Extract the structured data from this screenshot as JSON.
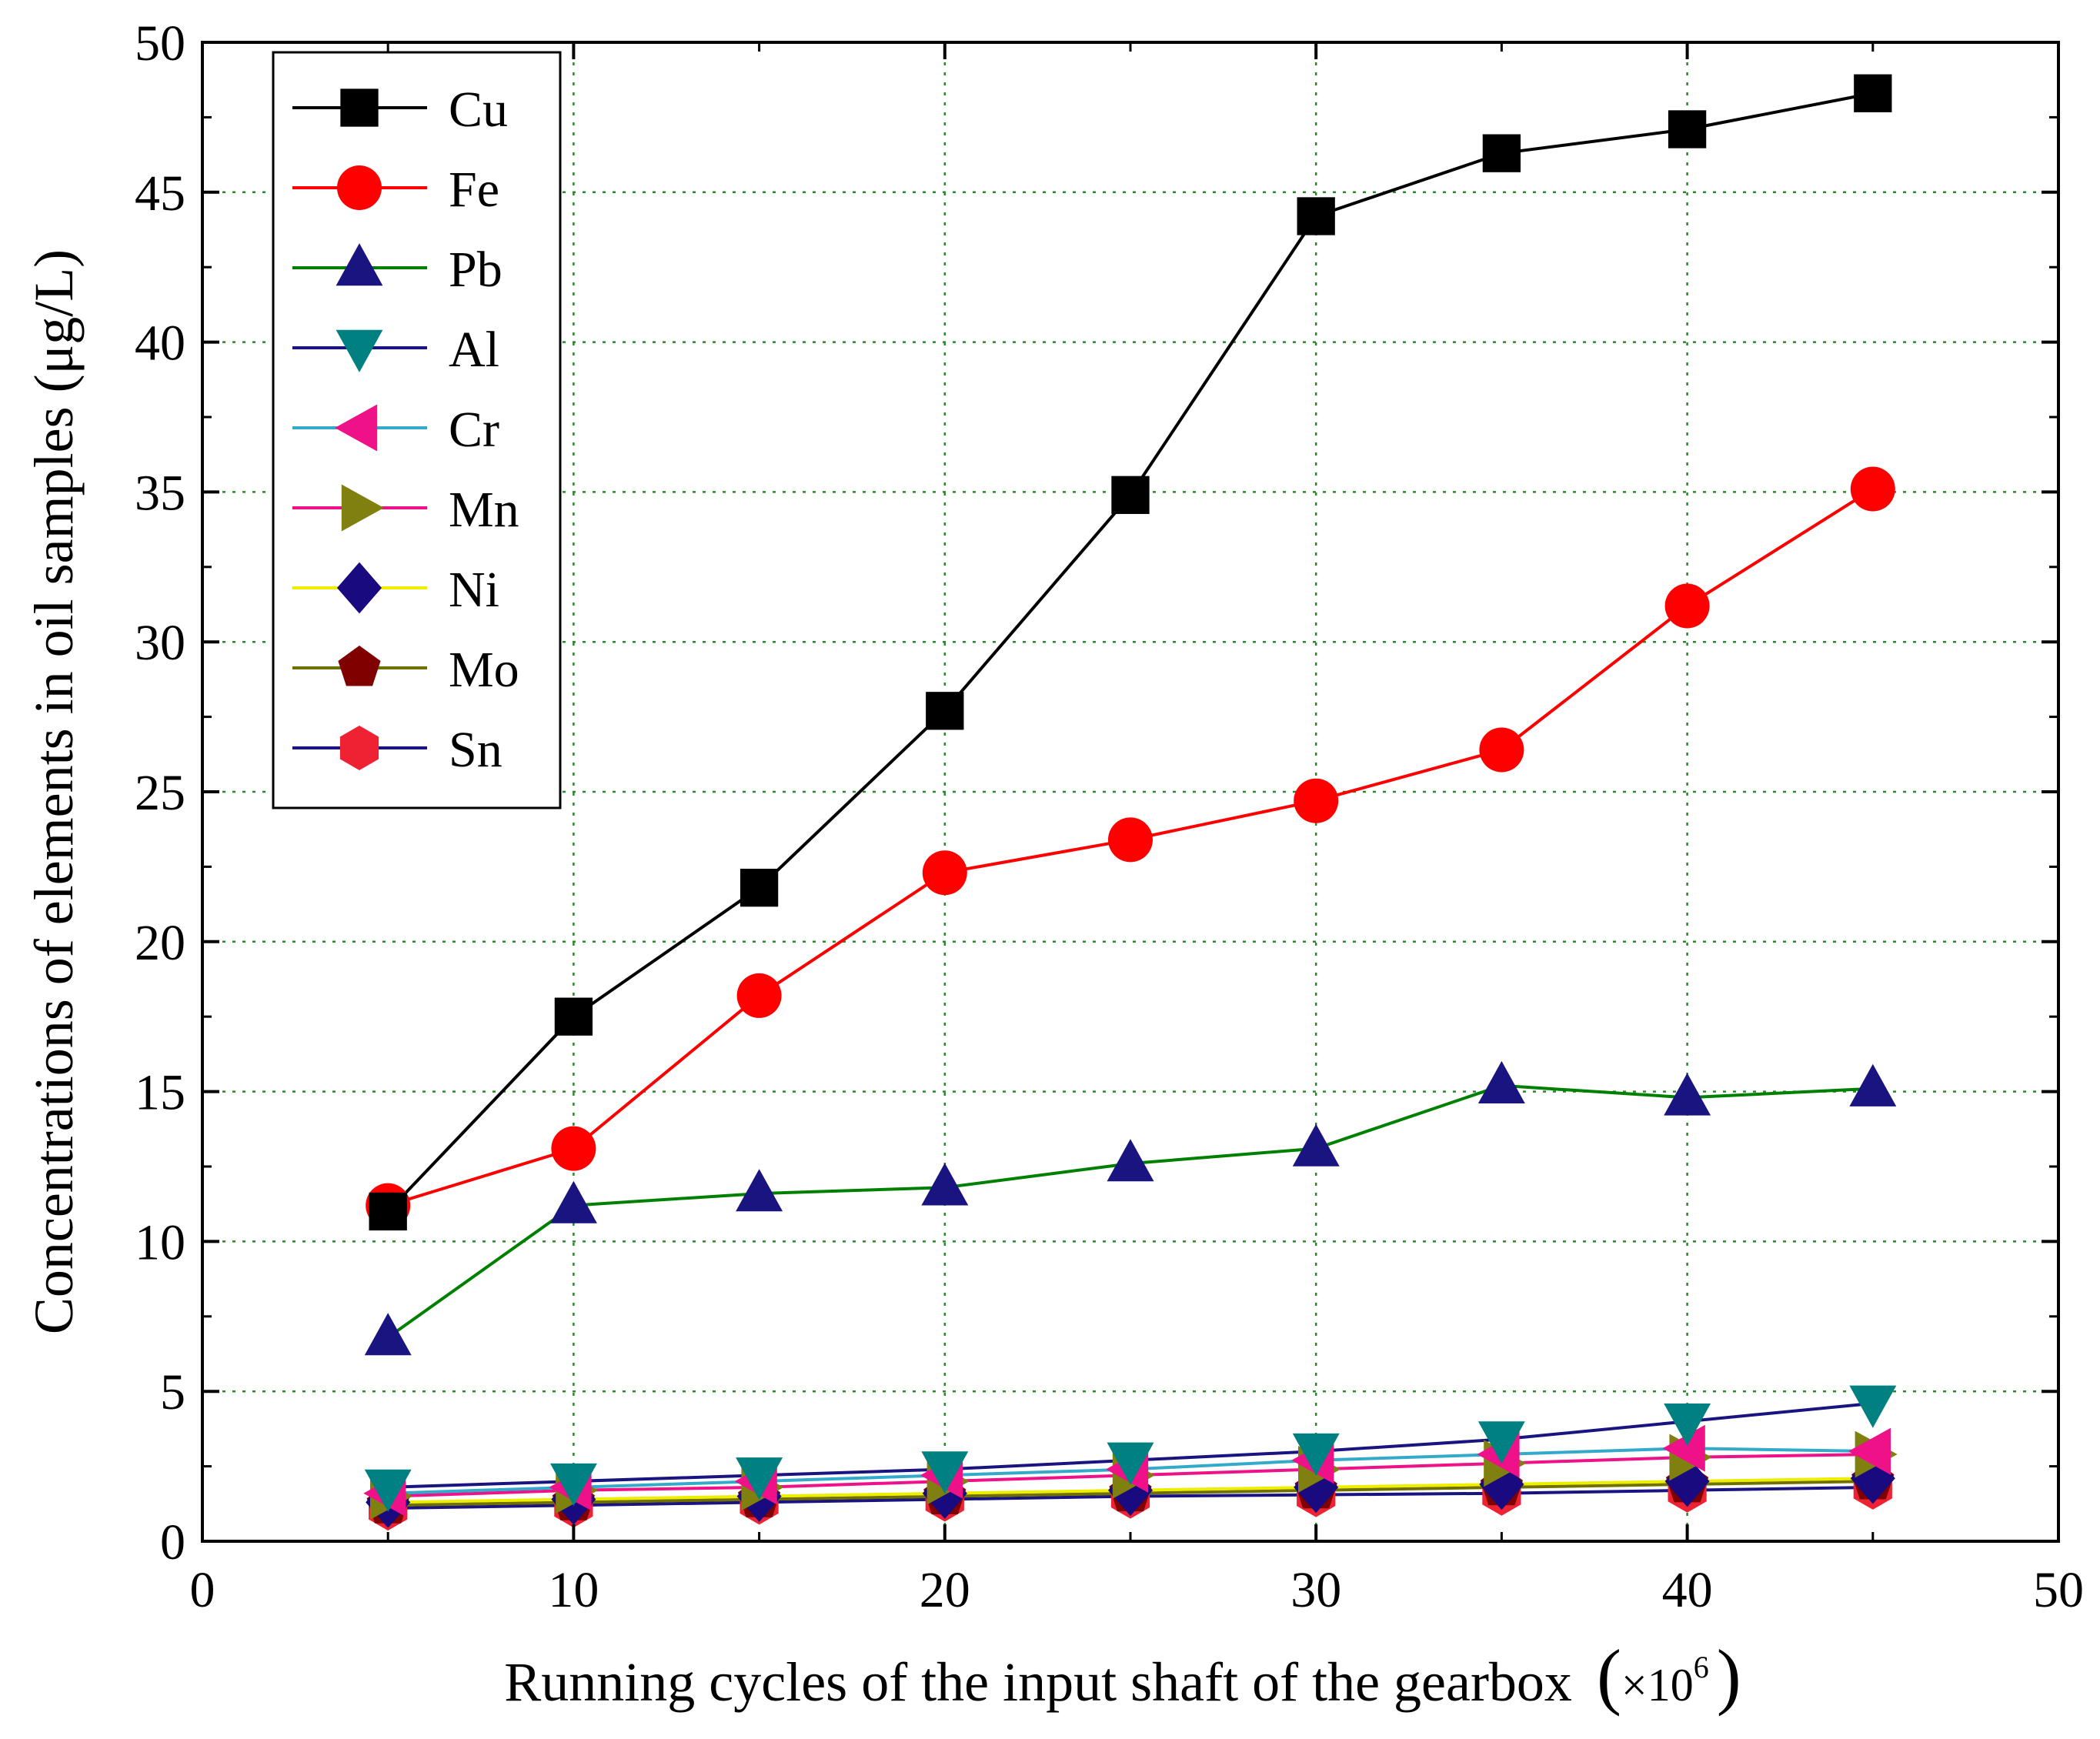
{
  "chart_data": {
    "type": "line",
    "title": "",
    "xlabel": "Running cycles of the input shaft of the gearbox",
    "xlabel_unit_prefix": "×10",
    "xlabel_unit_exponent": "6",
    "ylabel": "Concentrations of elements in oil samples (μg/L)",
    "xlim": [
      0,
      50
    ],
    "ylim": [
      0,
      50
    ],
    "xticks": [
      "0",
      "10",
      "20",
      "30",
      "40",
      "50"
    ],
    "yticks": [
      "0",
      "5",
      "10",
      "15",
      "20",
      "25",
      "30",
      "35",
      "40",
      "45",
      "50"
    ],
    "grid": true,
    "legend_position": "top-left",
    "x": [
      5,
      10,
      15,
      20,
      25,
      30,
      35,
      40,
      45
    ],
    "series": [
      {
        "name": "Cu",
        "color": "#000000",
        "marker": "square",
        "marker_color": "#000000",
        "values": [
          11.0,
          17.5,
          21.8,
          27.7,
          34.9,
          44.2,
          46.3,
          47.1,
          48.3
        ]
      },
      {
        "name": "Fe",
        "color": "#ff0000",
        "marker": "circle",
        "marker_color": "#ff0000",
        "values": [
          11.2,
          13.1,
          18.2,
          22.3,
          23.4,
          24.7,
          26.4,
          31.2,
          35.1
        ]
      },
      {
        "name": "Pb",
        "color": "#008000",
        "marker": "triangle-up",
        "marker_color": "#1a1480",
        "values": [
          6.8,
          11.2,
          11.6,
          11.8,
          12.6,
          13.1,
          15.2,
          14.8,
          15.1
        ]
      },
      {
        "name": "Al",
        "color": "#1a1480",
        "marker": "triangle-down",
        "marker_color": "#008080",
        "values": [
          1.8,
          2.0,
          2.2,
          2.4,
          2.7,
          3.0,
          3.4,
          4.0,
          4.6
        ]
      },
      {
        "name": "Cr",
        "color": "#33aacc",
        "marker": "triangle-left",
        "marker_color": "#ee1188",
        "values": [
          1.6,
          1.8,
          2.0,
          2.2,
          2.4,
          2.7,
          2.9,
          3.1,
          3.0
        ]
      },
      {
        "name": "Mn",
        "color": "#ee1188",
        "marker": "triangle-right",
        "marker_color": "#808010",
        "values": [
          1.5,
          1.7,
          1.8,
          2.0,
          2.2,
          2.4,
          2.6,
          2.8,
          2.9
        ]
      },
      {
        "name": "Ni",
        "color": "#eeee00",
        "marker": "diamond",
        "marker_color": "#1a0a80",
        "values": [
          1.3,
          1.4,
          1.5,
          1.6,
          1.7,
          1.8,
          1.9,
          2.0,
          2.1
        ]
      },
      {
        "name": "Mo",
        "color": "#707000",
        "marker": "pentagon",
        "marker_color": "#800000",
        "values": [
          1.2,
          1.3,
          1.4,
          1.5,
          1.6,
          1.7,
          1.8,
          1.9,
          2.0
        ]
      },
      {
        "name": "Sn",
        "color": "#1a1480",
        "marker": "hexagon",
        "marker_color": "#ee2233",
        "values": [
          1.1,
          1.2,
          1.3,
          1.4,
          1.5,
          1.55,
          1.6,
          1.7,
          1.8
        ]
      }
    ]
  }
}
